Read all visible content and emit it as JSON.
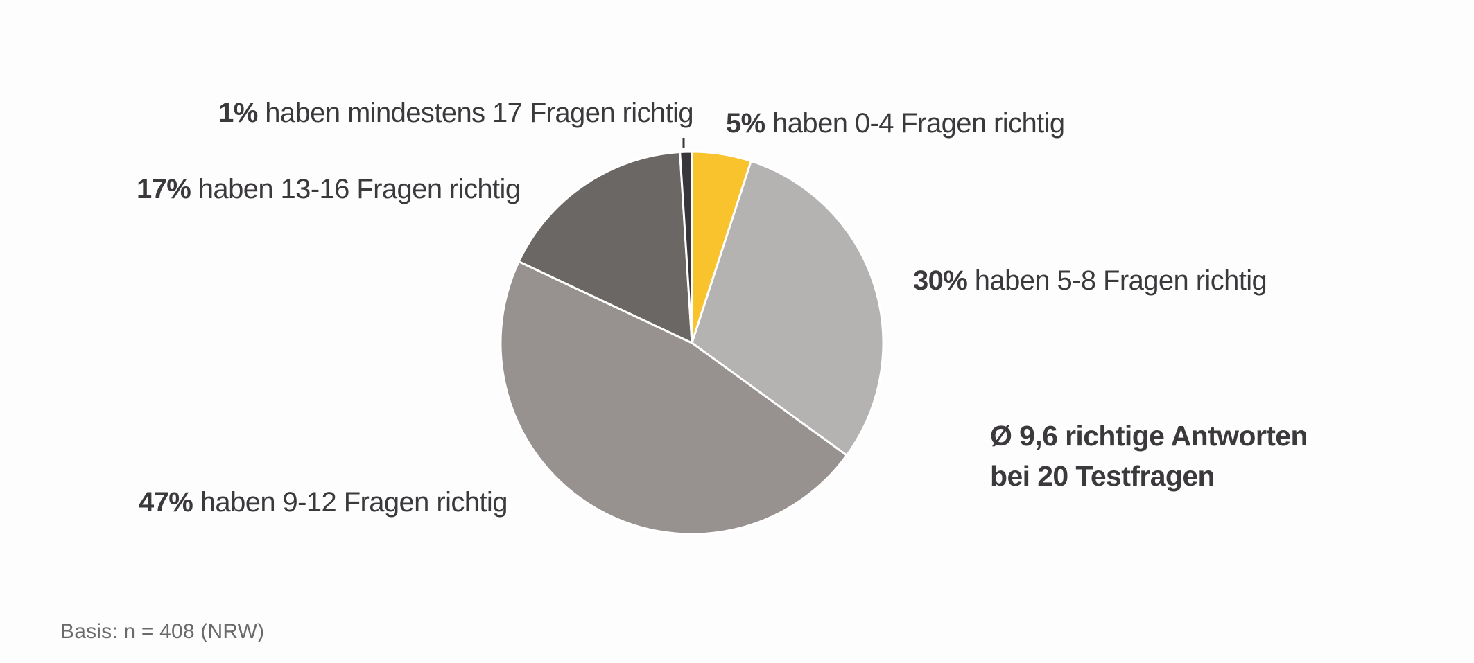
{
  "chart_data": {
    "type": "pie",
    "center_note": "survey result pie chart, slices clockwise from 12 o'clock",
    "direction": "clockwise",
    "start_angle_deg": 0,
    "total": 100,
    "slices": [
      {
        "name": "0-4 richtig",
        "value": 5,
        "color": "#F9C32D",
        "label": "5% haben 0-4 Fragen richtig"
      },
      {
        "name": "5-8 richtig",
        "value": 30,
        "color": "#B5B2B2",
        "label": "30% haben 5-8 Fragen richtig"
      },
      {
        "name": "9-12 richtig",
        "value": 47,
        "color": "#97918F",
        "label": "47% haben 9-12 Fragen richtig"
      },
      {
        "name": "13-16 richtig",
        "value": 17,
        "color": "#6B6765",
        "label": "17% haben 13-16 Fragen richtig"
      },
      {
        "name": "mind. 17 richtig",
        "value": 1,
        "color": "#38363B",
        "label": "1% haben mindestens 17 Fragen richtig"
      }
    ],
    "separator_color": "#FFFFFF",
    "annotation": "Ø 9,6 richtige Antworten bei 20 Testfragen",
    "footnote": "Basis: n = 408 (NRW)",
    "legend_position": "labels around pie"
  },
  "labels": {
    "l17plus": {
      "pct": "1%",
      "rest": " haben mindestens 17 Fragen richtig"
    },
    "l0_4": {
      "pct": "5%",
      "rest": " haben 0-4 Fragen richtig"
    },
    "l13_16": {
      "pct": "17%",
      "rest": " haben 13-16 Fragen richtig"
    },
    "l5_8": {
      "pct": "30%",
      "rest": " haben 5-8 Fragen richtig"
    },
    "l9_12": {
      "pct": "47%",
      "rest": " haben 9-12 Fragen richtig"
    },
    "mean_line1": "Ø 9,6 richtige Antworten",
    "mean_line2": "bei 20 Testfragen",
    "basis": "Basis: n = 408 (NRW)"
  },
  "colors": {
    "background": "#FDFDFE",
    "text": "#3B393C",
    "footnote_text": "#6A6A6A",
    "accent_yellow": "#F9C32D",
    "gray_light": "#B5B2B2",
    "gray_mid": "#97918F",
    "gray_dark": "#6B6765",
    "near_black": "#38363B",
    "slice_separator": "#FFFFFF"
  }
}
